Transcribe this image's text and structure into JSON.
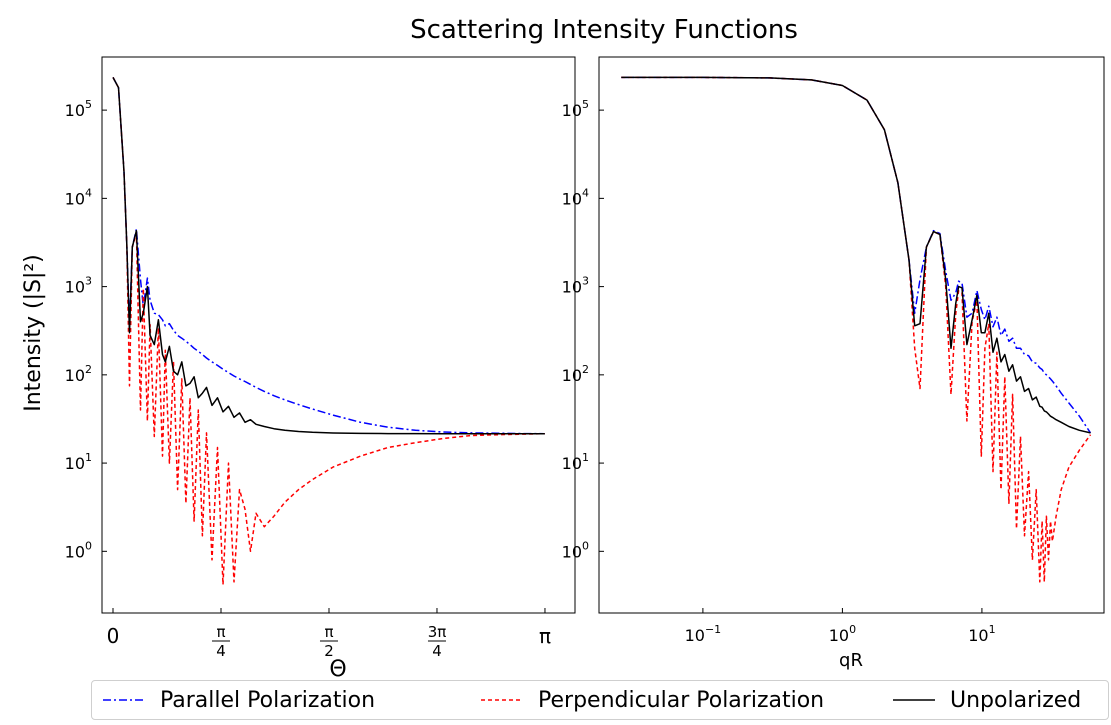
{
  "title": "Scattering Intensity Functions",
  "colors": {
    "parallel": "#0000ff",
    "perpendicular": "#ff0000",
    "unpolarized": "#000000"
  },
  "legend": {
    "placement": "bottom-center",
    "entries": [
      {
        "key": "parallel",
        "label": "Parallel Polarization",
        "style": "dashdot"
      },
      {
        "key": "perpendicular",
        "label": "Perpendicular Polarization",
        "style": "dashed"
      },
      {
        "key": "unpolarized",
        "label": "Unpolarized",
        "style": "solid"
      }
    ]
  },
  "chart_data": [
    {
      "type": "line",
      "xlabel": "Θ",
      "ylabel": "Intensity (|S|²)",
      "xscale": "linear",
      "yscale": "log",
      "xlim": [
        -0.08,
        3.36
      ],
      "ylim": [
        0.2,
        400000
      ],
      "grid": false,
      "x_ticks": [
        {
          "value": 0,
          "label": "0"
        },
        {
          "value": 0.7854,
          "label": "π/4",
          "num": "π",
          "den": "4"
        },
        {
          "value": 1.5708,
          "label": "π/2",
          "num": "π",
          "den": "2"
        },
        {
          "value": 2.3562,
          "label": "3π/4",
          "num": "3π",
          "den": "4"
        },
        {
          "value": 3.1416,
          "label": "π"
        }
      ],
      "y_ticks": [
        {
          "value": 1,
          "base": "10",
          "exp": "0"
        },
        {
          "value": 10,
          "base": "10",
          "exp": "1"
        },
        {
          "value": 100,
          "base": "10",
          "exp": "2"
        },
        {
          "value": 1000,
          "base": "10",
          "exp": "3"
        },
        {
          "value": 10000,
          "base": "10",
          "exp": "4"
        },
        {
          "value": 100000,
          "base": "10",
          "exp": "5"
        }
      ],
      "x": [
        0,
        0.04,
        0.08,
        0.1,
        0.12,
        0.14,
        0.17,
        0.2,
        0.22,
        0.25,
        0.27,
        0.3,
        0.33,
        0.36,
        0.38,
        0.41,
        0.44,
        0.47,
        0.5,
        0.53,
        0.56,
        0.59,
        0.62,
        0.65,
        0.68,
        0.72,
        0.76,
        0.8,
        0.84,
        0.88,
        0.92,
        0.96,
        1.0,
        1.04,
        1.1,
        1.17,
        1.25,
        1.35,
        1.45,
        1.6,
        1.8,
        2.0,
        2.2,
        2.4,
        2.6,
        2.8,
        3.0,
        3.14
      ],
      "series": [
        {
          "key": "parallel",
          "name": "Parallel Polarization",
          "values": [
            235000,
            180000,
            20000,
            3000,
            350,
            2800,
            4500,
            1200,
            600,
            1250,
            700,
            500,
            480,
            420,
            360,
            380,
            320,
            280,
            260,
            240,
            220,
            200,
            185,
            170,
            155,
            140,
            128,
            116,
            106,
            97,
            90,
            84,
            78,
            72,
            65,
            58,
            52,
            46,
            41,
            35,
            29,
            25.5,
            23.5,
            22.5,
            22,
            21.8,
            21.6,
            21.5
          ]
        },
        {
          "key": "perpendicular",
          "name": "Perpendicular Polarization",
          "values": [
            235000,
            180000,
            20000,
            3000,
            75,
            2800,
            4000,
            40,
            950,
            30,
            370,
            20,
            340,
            12,
            190,
            10,
            140,
            5,
            90,
            3.5,
            55,
            2.2,
            40,
            1.5,
            22,
            0.8,
            15,
            0.42,
            10,
            0.45,
            5,
            3,
            1,
            2.7,
            1.9,
            2.5,
            3.6,
            5,
            6.5,
            9,
            12,
            15,
            17,
            19,
            20.5,
            21,
            21.3,
            21.5
          ]
        },
        {
          "key": "unpolarized",
          "name": "Unpolarized",
          "values": [
            235000,
            180000,
            20000,
            3000,
            300,
            2800,
            4300,
            400,
            500,
            1000,
            280,
            220,
            420,
            170,
            140,
            210,
            110,
            100,
            140,
            75,
            80,
            95,
            55,
            62,
            72,
            45,
            55,
            38,
            44,
            33,
            37,
            29,
            31,
            27.5,
            26,
            24.5,
            23.5,
            22.8,
            22.3,
            21.9,
            21.7,
            21.6,
            21.6,
            21.5,
            21.5,
            21.5,
            21.5,
            21.5
          ]
        }
      ]
    },
    {
      "type": "line",
      "xlabel": "qR",
      "ylabel": "",
      "xscale": "log",
      "yscale": "log",
      "xlim": [
        0.018,
        75
      ],
      "ylim": [
        0.2,
        400000
      ],
      "grid": false,
      "x_ticks": [
        {
          "value": 0.1,
          "base": "10",
          "exp": "−1"
        },
        {
          "value": 1,
          "base": "10",
          "exp": "0"
        },
        {
          "value": 10,
          "base": "10",
          "exp": "1"
        }
      ],
      "y_ticks": [
        {
          "value": 1,
          "base": "10",
          "exp": "0"
        },
        {
          "value": 10,
          "base": "10",
          "exp": "1"
        },
        {
          "value": 100,
          "base": "10",
          "exp": "2"
        },
        {
          "value": 1000,
          "base": "10",
          "exp": "3"
        },
        {
          "value": 10000,
          "base": "10",
          "exp": "4"
        },
        {
          "value": 100000,
          "base": "10",
          "exp": "5"
        }
      ],
      "x": [
        0.026,
        0.1,
        0.3,
        0.6,
        1.0,
        1.5,
        2.0,
        2.5,
        3.0,
        3.3,
        3.6,
        4.0,
        4.5,
        5.0,
        5.5,
        6.0,
        6.5,
        6.8,
        7.2,
        7.8,
        8.5,
        9.2,
        9.9,
        10.5,
        11.2,
        12.0,
        12.8,
        13.7,
        14.6,
        15.6,
        16.6,
        17.7,
        18.9,
        20.2,
        21.6,
        23.0,
        24.5,
        26.0,
        27.0,
        28.0,
        29.0,
        30.0,
        31.0,
        32.0,
        34.0,
        37.0,
        42.0,
        50.0,
        60.0
      ],
      "series": [
        {
          "key": "parallel",
          "name": "Parallel Polarization",
          "values": [
            235000,
            235000,
            232000,
            220000,
            190000,
            130000,
            60000,
            15000,
            2000,
            500,
            1200,
            2800,
            4300,
            4000,
            1500,
            700,
            850,
            1150,
            1100,
            450,
            500,
            900,
            550,
            420,
            600,
            350,
            450,
            280,
            330,
            240,
            260,
            200,
            200,
            170,
            165,
            140,
            135,
            120,
            115,
            105,
            100,
            95,
            90,
            85,
            75,
            62,
            48,
            34,
            22
          ]
        },
        {
          "key": "perpendicular",
          "name": "Perpendicular Polarization",
          "values": [
            235000,
            235000,
            232000,
            220000,
            190000,
            130000,
            60000,
            15000,
            2000,
            200,
            70,
            2800,
            4200,
            3900,
            1000,
            60,
            500,
            900,
            850,
            30,
            400,
            700,
            12,
            200,
            380,
            8,
            180,
            5,
            95,
            3.5,
            60,
            1.8,
            20,
            1.5,
            8,
            0.8,
            5,
            0.45,
            2.2,
            0.45,
            2.5,
            0.8,
            2.2,
            1.3,
            2.5,
            5,
            9,
            14,
            21
          ]
        },
        {
          "key": "unpolarized",
          "name": "Unpolarized",
          "values": [
            235000,
            235000,
            232000,
            220000,
            190000,
            130000,
            60000,
            15000,
            2000,
            360,
            380,
            2800,
            4200,
            3900,
            1200,
            200,
            650,
            1000,
            970,
            220,
            420,
            800,
            300,
            300,
            500,
            180,
            260,
            140,
            170,
            110,
            130,
            85,
            95,
            65,
            70,
            52,
            56,
            44,
            43,
            39,
            38,
            36,
            34,
            33,
            31,
            29,
            26,
            23.5,
            22
          ]
        }
      ]
    }
  ]
}
